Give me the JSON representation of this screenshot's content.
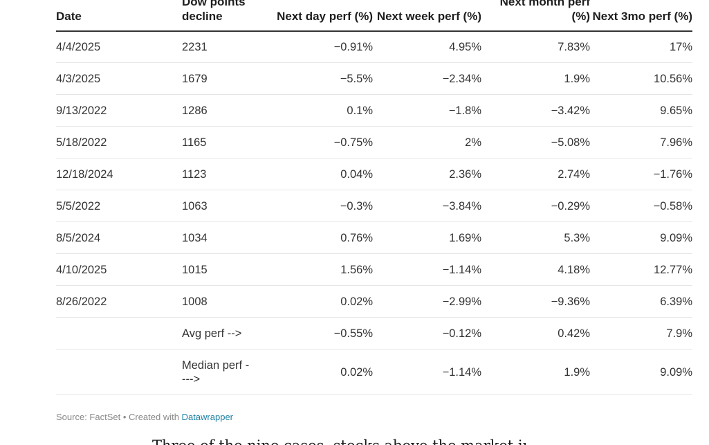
{
  "table": {
    "headers": [
      {
        "key": "date",
        "label": "Date"
      },
      {
        "key": "points",
        "label": "Dow points decline"
      },
      {
        "key": "next_day",
        "label": "Next day perf (%)"
      },
      {
        "key": "next_week",
        "label": "Next week perf (%)"
      },
      {
        "key": "next_month",
        "label": "Next month perf (%)"
      },
      {
        "key": "next_3mo",
        "label": "Next 3mo perf (%)"
      }
    ],
    "rows": [
      [
        "4/4/2025",
        "2231",
        "−0.91%",
        "4.95%",
        "7.83%",
        "17%"
      ],
      [
        "4/3/2025",
        "1679",
        "−5.5%",
        "−2.34%",
        "1.9%",
        "10.56%"
      ],
      [
        "9/13/2022",
        "1286",
        "0.1%",
        "−1.8%",
        "−3.42%",
        "9.65%"
      ],
      [
        "5/18/2022",
        "1165",
        "−0.75%",
        "2%",
        "−5.08%",
        "7.96%"
      ],
      [
        "12/18/2024",
        "1123",
        "0.04%",
        "2.36%",
        "2.74%",
        "−1.76%"
      ],
      [
        "5/5/2022",
        "1063",
        "−0.3%",
        "−3.84%",
        "−0.29%",
        "−0.58%"
      ],
      [
        "8/5/2024",
        "1034",
        "0.76%",
        "1.69%",
        "5.3%",
        "9.09%"
      ],
      [
        "4/10/2025",
        "1015",
        "1.56%",
        "−1.14%",
        "4.18%",
        "12.77%"
      ],
      [
        "8/26/2022",
        "1008",
        "0.02%",
        "−2.99%",
        "−9.36%",
        "6.39%"
      ],
      [
        "",
        "Avg perf -->",
        "−0.55%",
        "−0.12%",
        "0.42%",
        "7.9%"
      ],
      [
        "",
        "Median perf ---->",
        "0.02%",
        "−1.14%",
        "1.9%",
        "9.09%"
      ]
    ]
  },
  "footer": {
    "source_prefix": "Source: FactSet • Created with ",
    "link_text": "Datawrapper"
  },
  "article": {
    "partial_text": "Three of the nine cases, stocks above the market in hi"
  }
}
